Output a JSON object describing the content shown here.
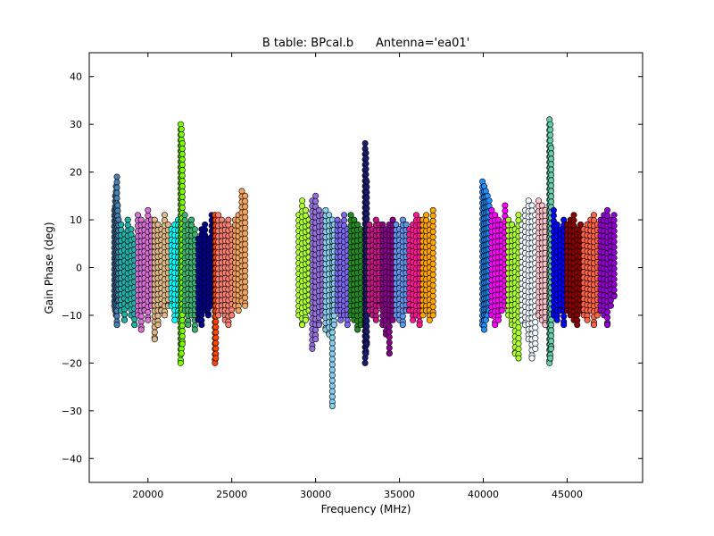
{
  "chart_data": {
    "type": "scatter",
    "title": "B table: BPcal.b      Antenna='ea01'",
    "xlabel": "Frequency (MHz)",
    "ylabel": "Gain Phase (deg)",
    "xlim": [
      16500,
      49500
    ],
    "ylim": [
      -45,
      45
    ],
    "x_ticks": [
      20000,
      25000,
      30000,
      35000,
      40000,
      45000
    ],
    "y_ticks": [
      -40,
      -30,
      -20,
      -10,
      0,
      10,
      20,
      30,
      40
    ],
    "grid": false,
    "legend": "none",
    "marker": "circle",
    "spectral_windows": [
      {
        "x": [
          18000,
          18050,
          18100,
          18150,
          18200,
          18250
        ],
        "ymin": [
          -8,
          -9,
          -10,
          -12,
          -7,
          -8
        ],
        "ymax": [
          12,
          15,
          17,
          19,
          13,
          10
        ],
        "color": "#4682b4"
      },
      {
        "x": [
          18400,
          18600,
          18800,
          19000,
          19200
        ],
        "ymin": [
          -9,
          -11,
          -8,
          -10,
          -12
        ],
        "ymax": [
          9,
          7,
          10,
          8,
          6
        ],
        "color": "#20b2aa"
      },
      {
        "x": [
          19400,
          19600,
          19800,
          20000,
          20200
        ],
        "ymin": [
          -10,
          -13,
          -9,
          -11,
          -8
        ],
        "ymax": [
          11,
          10,
          9,
          12,
          10
        ],
        "color": "#da70d6"
      },
      {
        "x": [
          20400,
          20600,
          20800,
          21000,
          21200
        ],
        "ymin": [
          -15,
          -12,
          -9,
          -10,
          -8
        ],
        "ymax": [
          10,
          9,
          8,
          11,
          9
        ],
        "color": "#deb887"
      },
      {
        "x": [
          21400,
          21600,
          21800
        ],
        "ymin": [
          -8,
          -11,
          -10
        ],
        "ymax": [
          8,
          9,
          10
        ],
        "color": "#00ffff"
      },
      {
        "x": [
          21950,
          22000,
          22050
        ],
        "ymin": [
          -20,
          -18,
          -16
        ],
        "ymax": [
          30,
          29,
          26
        ],
        "color": "#7cfc00"
      },
      {
        "x": [
          22200,
          22400,
          22600,
          22800
        ],
        "ymin": [
          -9,
          -12,
          -10,
          -13
        ],
        "ymax": [
          11,
          9,
          10,
          8
        ],
        "color": "#3cb371"
      },
      {
        "x": [
          23000,
          23200,
          23400,
          23600,
          23800
        ],
        "ymin": [
          -11,
          -12,
          -9,
          -10,
          -8
        ],
        "ymax": [
          6,
          8,
          9,
          6,
          11
        ],
        "color": "#00008b"
      },
      {
        "x": [
          24000,
          24050
        ],
        "ymin": [
          -20,
          -19
        ],
        "ymax": [
          11,
          10
        ],
        "color": "#ff4500"
      },
      {
        "x": [
          24200,
          24400,
          24600,
          24800,
          25000
        ],
        "ymin": [
          -10,
          -9,
          -11,
          -12,
          -10
        ],
        "ymax": [
          11,
          10,
          9,
          10,
          8
        ],
        "color": "#fa8072"
      },
      {
        "x": [
          25200,
          25400,
          25600,
          25800
        ],
        "ymin": [
          -8,
          -9,
          -7,
          -8
        ],
        "ymax": [
          10,
          11,
          16,
          15
        ],
        "color": "#f4a460"
      },
      {
        "x": [
          29000,
          29200,
          29400,
          29600
        ],
        "ymin": [
          -10,
          -12,
          -11,
          -9
        ],
        "ymax": [
          11,
          14,
          12,
          10
        ],
        "color": "#adff2f"
      },
      {
        "x": [
          29800,
          30000,
          30200,
          30400
        ],
        "ymin": [
          -17,
          -15,
          -12,
          -10
        ],
        "ymax": [
          14,
          15,
          12,
          11
        ],
        "color": "#9370db"
      },
      {
        "x": [
          30600,
          30800,
          31000,
          31100
        ],
        "ymin": [
          -13,
          -14,
          -29,
          -12
        ],
        "ymax": [
          12,
          11,
          10,
          9
        ],
        "color": "#87ceeb"
      },
      {
        "x": [
          31300,
          31500,
          31700,
          31900
        ],
        "ymin": [
          -9,
          -11,
          -10,
          -12
        ],
        "ymax": [
          10,
          9,
          11,
          8
        ],
        "color": "#7b68ee"
      },
      {
        "x": [
          32100,
          32300,
          32500,
          32700
        ],
        "ymin": [
          -10,
          -11,
          -13,
          -12
        ],
        "ymax": [
          11,
          10,
          9,
          8
        ],
        "color": "#228b22"
      },
      {
        "x": [
          32950,
          33000,
          33050
        ],
        "ymin": [
          -20,
          -18,
          -16
        ],
        "ymax": [
          26,
          24,
          18
        ],
        "color": "#191970"
      },
      {
        "x": [
          33200,
          33400,
          33600,
          33800
        ],
        "ymin": [
          -9,
          -10,
          -11,
          -8
        ],
        "ymax": [
          9,
          8,
          10,
          9
        ],
        "color": "#c71585"
      },
      {
        "x": [
          34000,
          34200,
          34400,
          34600
        ],
        "ymin": [
          -12,
          -14,
          -18,
          -11
        ],
        "ymax": [
          9,
          8,
          9,
          10
        ],
        "color": "#8b008b"
      },
      {
        "x": [
          34800,
          35000,
          35200,
          35400
        ],
        "ymin": [
          -10,
          -11,
          -12,
          -9
        ],
        "ymax": [
          9,
          8,
          10,
          9
        ],
        "color": "#6495ed"
      },
      {
        "x": [
          35600,
          35800,
          36000,
          36200
        ],
        "ymin": [
          -9,
          -11,
          -10,
          -12
        ],
        "ymax": [
          8,
          9,
          11,
          10
        ],
        "color": "#ff1493"
      },
      {
        "x": [
          36400,
          36600,
          36800,
          37000
        ],
        "ymin": [
          -10,
          -9,
          -11,
          -10
        ],
        "ymax": [
          10,
          11,
          9,
          12
        ],
        "color": "#ffa500"
      },
      {
        "x": [
          39950,
          40050,
          40150,
          40250,
          40350
        ],
        "ymin": [
          -12,
          -13,
          -11,
          -10,
          -9
        ],
        "ymax": [
          18,
          17,
          16,
          15,
          14
        ],
        "color": "#1e90ff"
      },
      {
        "x": [
          40500,
          40700,
          40900,
          41100,
          41300
        ],
        "ymin": [
          -10,
          -12,
          -11,
          -9,
          -8
        ],
        "ymax": [
          12,
          11,
          10,
          9,
          13
        ],
        "color": "#ff00ff"
      },
      {
        "x": [
          41500,
          41700,
          41900,
          42100
        ],
        "ymin": [
          -10,
          -12,
          -18,
          -19
        ],
        "ymax": [
          10,
          9,
          8,
          11
        ],
        "color": "#adff2f"
      },
      {
        "x": [
          42300,
          42500,
          42700,
          42900,
          43100
        ],
        "ymin": [
          -11,
          -12,
          -15,
          -19,
          -17
        ],
        "ymax": [
          9,
          12,
          14,
          13,
          11
        ],
        "color": "#f0f8ff"
      },
      {
        "x": [
          43300,
          43500,
          43700
        ],
        "ymin": [
          -10,
          -11,
          -12
        ],
        "ymax": [
          14,
          13,
          12
        ],
        "color": "#ffc0cb"
      },
      {
        "x": [
          43950,
          44000,
          44050
        ],
        "ymin": [
          -20,
          -19,
          -17
        ],
        "ymax": [
          31,
          30,
          25
        ],
        "color": "#66cdaa"
      },
      {
        "x": [
          44200,
          44400,
          44600,
          44800
        ],
        "ymin": [
          -10,
          -11,
          -9,
          -12
        ],
        "ymax": [
          12,
          9,
          8,
          10
        ],
        "color": "#0000ff"
      },
      {
        "x": [
          45000,
          45200,
          45400,
          45600,
          45800
        ],
        "ymin": [
          -9,
          -10,
          -11,
          -12,
          -9
        ],
        "ymax": [
          9,
          10,
          11,
          8,
          9
        ],
        "color": "#8b0000"
      },
      {
        "x": [
          46000,
          46200,
          46400,
          46600,
          46800
        ],
        "ymin": [
          -10,
          -11,
          -9,
          -12,
          -10
        ],
        "ymax": [
          8,
          9,
          10,
          11,
          9
        ],
        "color": "#ff6347"
      },
      {
        "x": [
          47000,
          47200,
          47400,
          47600,
          47800
        ],
        "ymin": [
          -9,
          -10,
          -12,
          -8,
          -6
        ],
        "ymax": [
          10,
          11,
          12,
          10,
          11
        ],
        "color": "#9400d3"
      }
    ]
  }
}
